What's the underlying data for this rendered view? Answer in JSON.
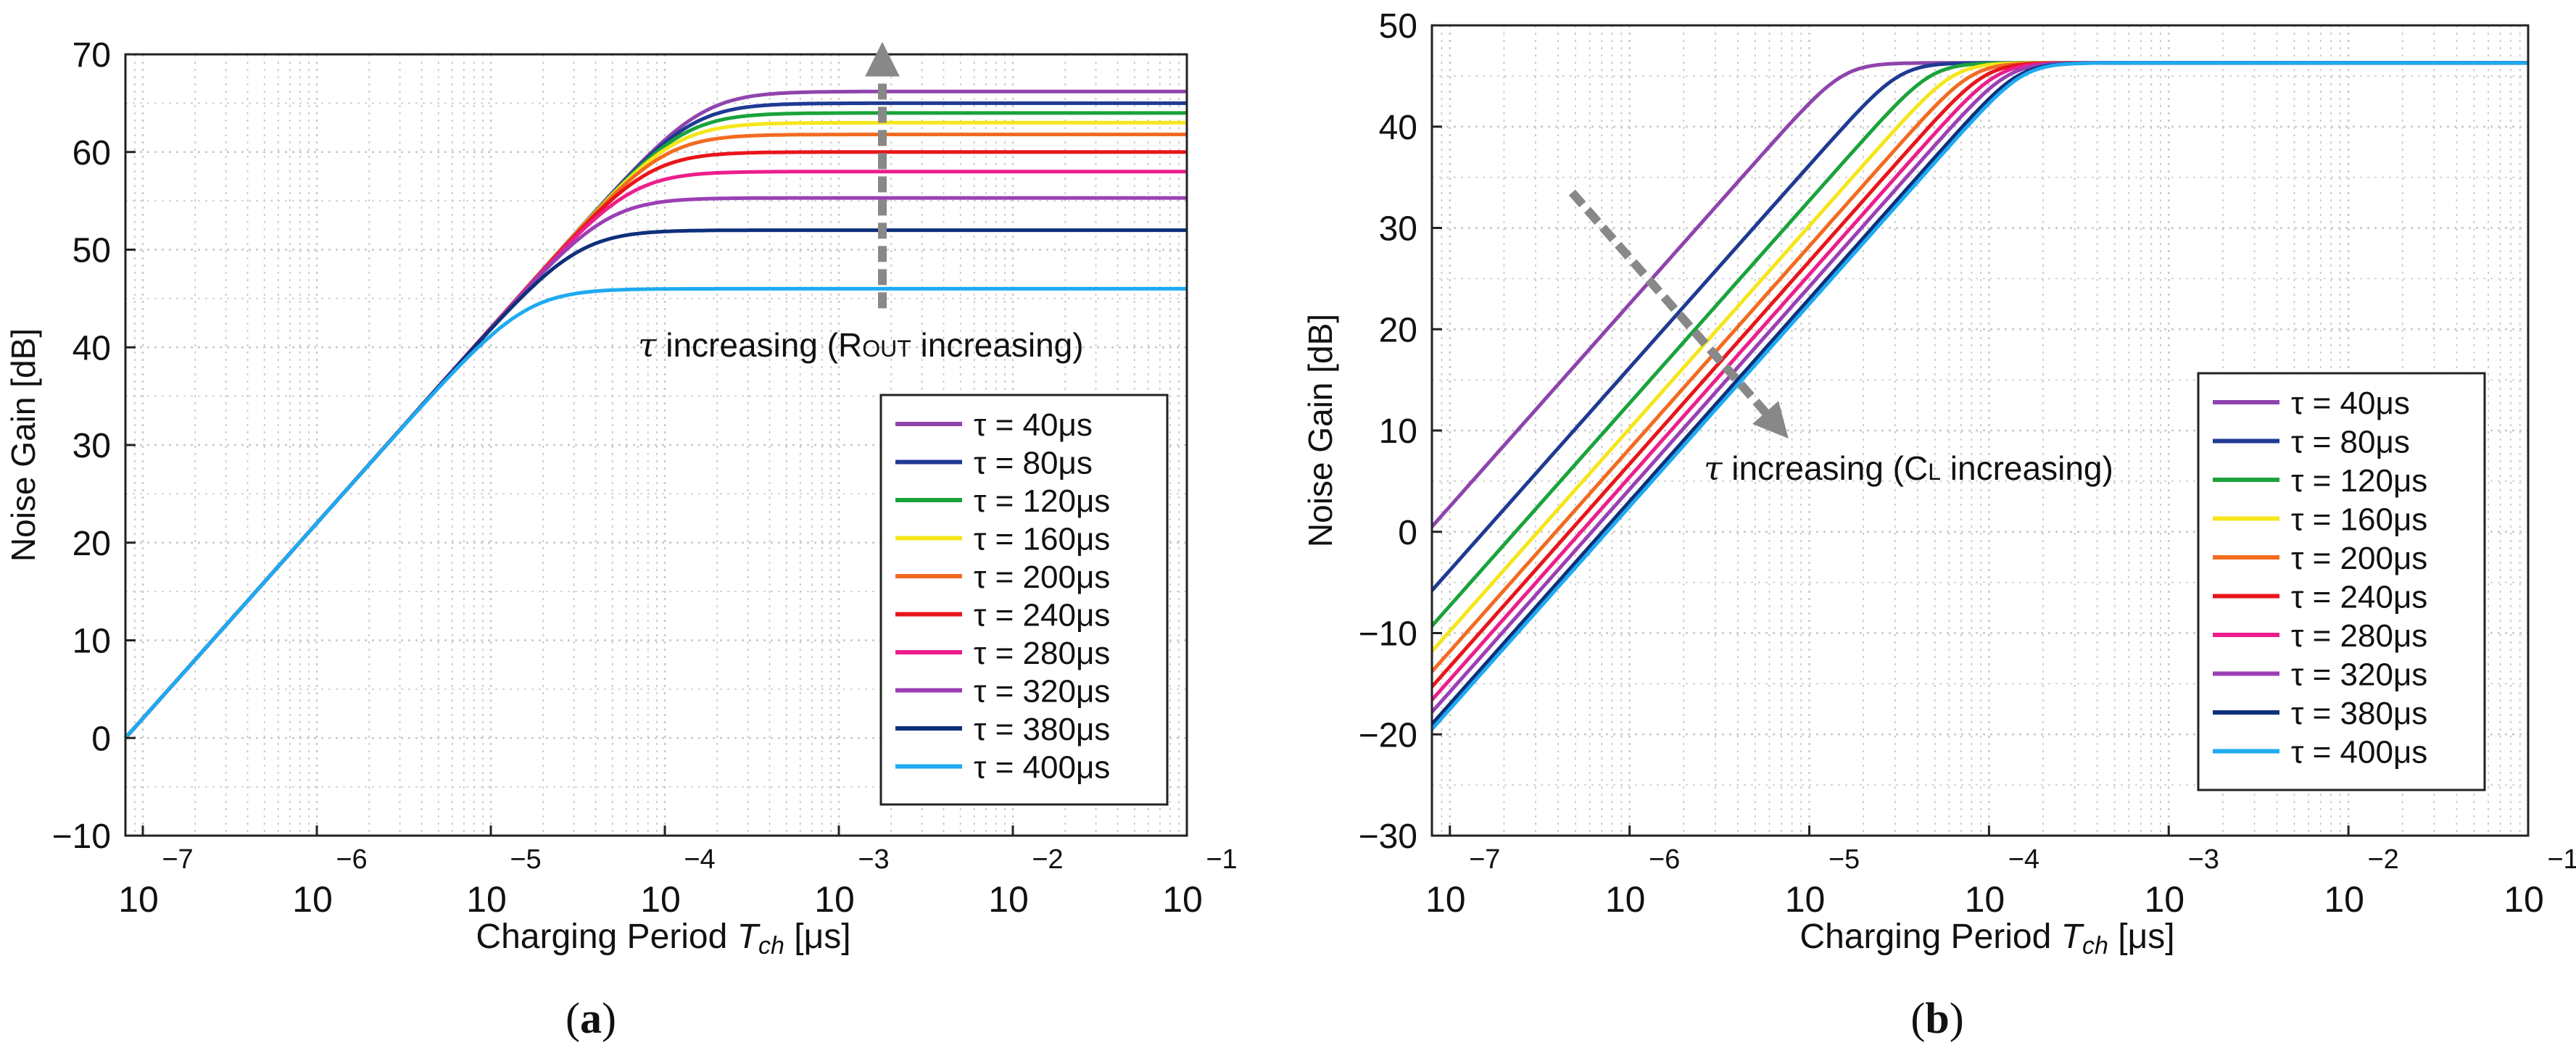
{
  "colors": [
    "#8e44ad",
    "#1f3a93",
    "#1aa33b",
    "#f5e61b",
    "#f26b21",
    "#e8151b",
    "#ec1e8c",
    "#9b3fb5",
    "#0e2f7a",
    "#1eaaf1"
  ],
  "legend_labels": [
    "τ = 40μs",
    "τ = 80μs",
    "τ = 120μs",
    "τ = 160μs",
    "τ = 200μs",
    "τ = 240μs",
    "τ = 280μs",
    "τ = 320μs",
    "τ = 380μs",
    "τ = 400μs"
  ],
  "chart_data": [
    {
      "id": "a",
      "type": "line",
      "caption_letter": "a",
      "xscale": "log",
      "xlim": [
        -7.1,
        -1
      ],
      "ylim": [
        -10,
        70
      ],
      "xlabel_main": "Charging Period ",
      "xlabel_ital": "T",
      "xlabel_sub": "ch",
      "xlabel_unit": " [μs]",
      "ylabel": "Noise Gain [dB]",
      "xtick_base": [
        "10",
        "10",
        "10",
        "10",
        "10",
        "10",
        "10"
      ],
      "xtick_exp": [
        "−7",
        "−6",
        "−5",
        "−4",
        "−3",
        "−2",
        "−1"
      ],
      "xticks": [
        -7,
        -6,
        -5,
        -4,
        -3,
        -2,
        -1
      ],
      "yticks": [
        -10,
        0,
        10,
        20,
        30,
        40,
        50,
        60,
        70
      ],
      "ytick_labels": [
        "−10",
        "0",
        "10",
        "20",
        "30",
        "40",
        "50",
        "60",
        "70"
      ],
      "series": [
        {
          "name": "τ = 40μs",
          "knee": -3.22,
          "plateau": 66.2
        },
        {
          "name": "τ = 80μs",
          "knee": -3.25,
          "plateau": 65.0
        },
        {
          "name": "τ = 120μs",
          "knee": -3.3,
          "plateau": 64.0
        },
        {
          "name": "τ = 160μs",
          "knee": -3.35,
          "plateau": 63.0
        },
        {
          "name": "τ = 200μs",
          "knee": -3.4,
          "plateau": 61.8
        },
        {
          "name": "τ = 240μs",
          "knee": -3.5,
          "plateau": 60.0
        },
        {
          "name": "τ = 280μs",
          "knee": -3.6,
          "plateau": 58.0
        },
        {
          "name": "τ = 320μs",
          "knee": -3.85,
          "plateau": 55.3
        },
        {
          "name": "τ = 380μs",
          "knee": -4.1,
          "plateau": 52.0
        },
        {
          "name": "τ = 400μs",
          "knee": -4.4,
          "plateau": 46.0
        }
      ],
      "annotation": {
        "prefix": "τ",
        "text": " increasing (R",
        "small": "OUT",
        "suffix": " increasing)"
      },
      "arrow": {
        "x": -2.75,
        "y_start": 44,
        "y_end": 69.5
      }
    },
    {
      "id": "b",
      "type": "line",
      "caption_letter": "b",
      "xscale": "log",
      "xlim": [
        -7.1,
        -1
      ],
      "ylim": [
        -30,
        50
      ],
      "xlabel_main": "Charging Period ",
      "xlabel_ital": "T",
      "xlabel_sub": "ch",
      "xlabel_unit": " [μs]",
      "ylabel": "Noise Gain [dB]",
      "xtick_base": [
        "10",
        "10",
        "10",
        "10",
        "10",
        "10",
        "10"
      ],
      "xtick_exp": [
        "−7",
        "−6",
        "−5",
        "−4",
        "−3",
        "−2",
        "−1"
      ],
      "xticks": [
        -7,
        -6,
        -5,
        -4,
        -3,
        -2,
        -1
      ],
      "yticks": [
        -30,
        -20,
        -10,
        0,
        10,
        20,
        30,
        40,
        50
      ],
      "ytick_labels": [
        "−30",
        "−20",
        "−10",
        "0",
        "10",
        "20",
        "30",
        "40",
        "50"
      ],
      "series": [
        {
          "name": "τ = 40μs",
          "y_start": 0.5,
          "plateau": 46.3
        },
        {
          "name": "τ = 80μs",
          "y_start": -5.8,
          "plateau": 46.3
        },
        {
          "name": "τ = 120μs",
          "y_start": -9.3,
          "plateau": 46.3
        },
        {
          "name": "τ = 160μs",
          "y_start": -11.8,
          "plateau": 46.3
        },
        {
          "name": "τ = 200μs",
          "y_start": -13.8,
          "plateau": 46.3
        },
        {
          "name": "τ = 240μs",
          "y_start": -15.3,
          "plateau": 46.3
        },
        {
          "name": "τ = 280μs",
          "y_start": -16.6,
          "plateau": 46.3
        },
        {
          "name": "τ = 320μs",
          "y_start": -17.8,
          "plateau": 46.3
        },
        {
          "name": "τ = 380μs",
          "y_start": -19.0,
          "plateau": 46.3
        },
        {
          "name": "τ = 400μs",
          "y_start": -19.5,
          "plateau": 46.3
        }
      ],
      "annotation": {
        "prefix": "τ",
        "text": " increasing (C",
        "small": "L",
        "suffix": " increasing)"
      },
      "arrow": {
        "x_start": -6.32,
        "y_start": 33.5,
        "x_end": -5.18,
        "y_end": 10.5
      }
    }
  ]
}
